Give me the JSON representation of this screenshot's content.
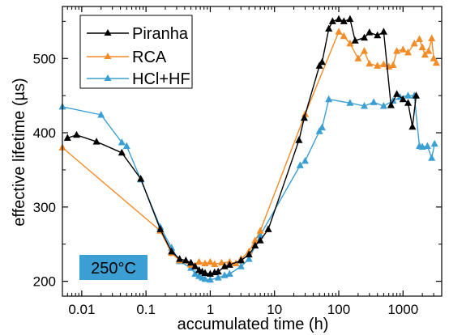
{
  "chart_data": {
    "type": "line",
    "title": "",
    "xlabel": "accumulated time (h)",
    "ylabel": "effective lifetime (µs)",
    "xscale": "log",
    "xlim": [
      0.005,
      4000
    ],
    "ylim": [
      180,
      570
    ],
    "xticks": [
      0.01,
      0.1,
      1,
      10,
      100,
      1000
    ],
    "xtick_labels": [
      "0.01",
      "0.1",
      "1",
      "10",
      "100",
      "1000"
    ],
    "yticks": [
      200,
      300,
      400,
      500
    ],
    "ytick_labels": [
      "200",
      "300",
      "400",
      "500"
    ],
    "grid": false,
    "legend_position": "top-left",
    "annotation": {
      "text": "250°C",
      "background": "#3b9fd4"
    },
    "series": [
      {
        "name": "Piranha",
        "color": "#000000",
        "marker": "triangle",
        "x": [
          0.006,
          0.0083,
          0.017,
          0.042,
          0.083,
          0.167,
          0.25,
          0.333,
          0.417,
          0.5,
          0.58,
          0.67,
          0.75,
          0.83,
          1.0,
          1.17,
          1.33,
          1.67,
          2.0,
          3.0,
          4.0,
          5.0,
          6.0,
          8.0,
          24,
          29,
          50,
          55,
          70,
          80,
          100,
          120,
          150,
          180,
          250,
          300,
          400,
          500,
          650,
          800,
          1000,
          1200,
          1400,
          1600
        ],
        "y": [
          393,
          397,
          388,
          373,
          338,
          270,
          240,
          230,
          228,
          225,
          220,
          215,
          213,
          211,
          210,
          212,
          213,
          220,
          222,
          228,
          236,
          248,
          255,
          270,
          390,
          420,
          490,
          495,
          540,
          550,
          553,
          550,
          553,
          524,
          528,
          535,
          531,
          536,
          437,
          452,
          445,
          440,
          408,
          450
        ]
      },
      {
        "name": "RCA",
        "color": "#f28c28",
        "marker": "triangle",
        "x": [
          0.005,
          0.167,
          0.25,
          0.333,
          0.5,
          0.67,
          0.83,
          1.0,
          1.17,
          1.5,
          2.0,
          2.5,
          3.0,
          4.0,
          5.0,
          6.0,
          30,
          100,
          120,
          150,
          200,
          250,
          300,
          400,
          500,
          600,
          700,
          800,
          1000,
          1200,
          1500,
          1800,
          2000,
          2200,
          2500,
          2800,
          3000,
          3300
        ],
        "y": [
          380,
          268,
          238,
          228,
          222,
          226,
          224,
          226,
          223,
          225,
          226,
          224,
          230,
          240,
          255,
          268,
          425,
          536,
          530,
          520,
          500,
          510,
          493,
          490,
          492,
          489,
          491,
          510,
          512,
          508,
          520,
          526,
          515,
          505,
          510,
          527,
          500,
          494
        ]
      },
      {
        "name": "HCl+HF",
        "color": "#3b9fd4",
        "marker": "triangle",
        "x": [
          0.005,
          0.02,
          0.042,
          0.05,
          0.083,
          0.167,
          0.25,
          0.333,
          0.5,
          0.583,
          0.67,
          0.75,
          0.83,
          1.0,
          1.33,
          1.67,
          2.0,
          3.0,
          4.0,
          6.0,
          25,
          30,
          50,
          55,
          70,
          150,
          250,
          350,
          500,
          700,
          900,
          1200,
          1500,
          1800,
          2000,
          2400,
          2800,
          3100
        ],
        "y": [
          435,
          424,
          387,
          382,
          337,
          273,
          245,
          227,
          218,
          210,
          207,
          205,
          203,
          202,
          205,
          208,
          210,
          220,
          230,
          262,
          356,
          362,
          402,
          407,
          445,
          440,
          436,
          441,
          436,
          443,
          448,
          450,
          450,
          382,
          381,
          382,
          366,
          385
        ]
      }
    ]
  }
}
